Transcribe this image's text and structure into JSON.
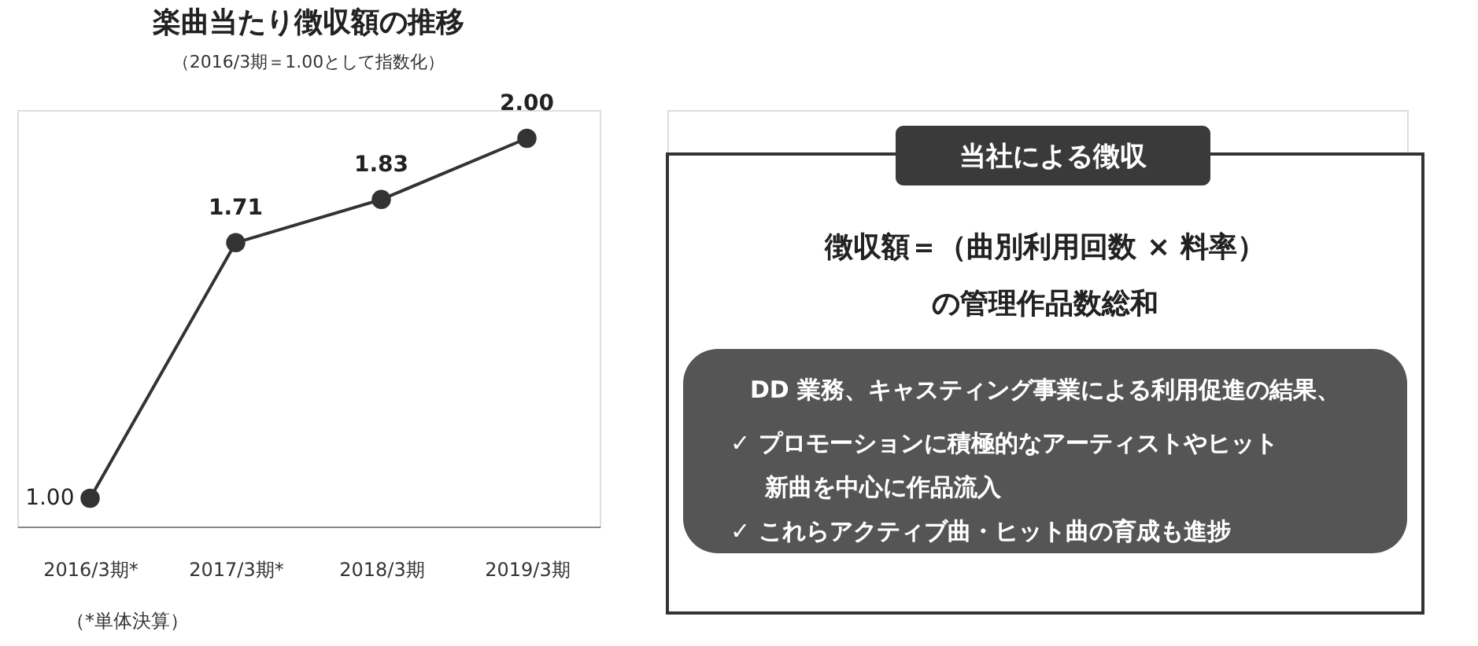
{
  "chart_data": [
    {
      "type": "line",
      "title": "楽曲当たり徴収額の推移",
      "subtitle": "（2016/3期＝1.00として指数化）",
      "categories": [
        "2016/3期*",
        "2017/3期*",
        "2018/3期",
        "2019/3期"
      ],
      "series": [
        {
          "color": "#333333",
          "values": [
            1.0,
            1.71,
            1.83,
            2.0
          ],
          "value_labels": [
            "1.00",
            "1.71",
            "1.83",
            "2.00"
          ]
        }
      ],
      "marker": "circle",
      "line_style": "solid",
      "tick_labels": "x",
      "annotations": [
        "（*単体決算）"
      ]
    },
    {
      "type": "other",
      "title": "当社による徴収",
      "annotations": [
        "徴収額＝（曲別利用回数 × 料率）",
        "の管理作品数総和",
        "DD 業務、キャスティング事業による利用促進の結果、",
        "✓ プロモーションに積極的なアーティストやヒット",
        "新曲を中心に作品流入",
        "✓ これらアクティブ曲・ヒット曲の育成も進捗"
      ]
    }
  ]
}
